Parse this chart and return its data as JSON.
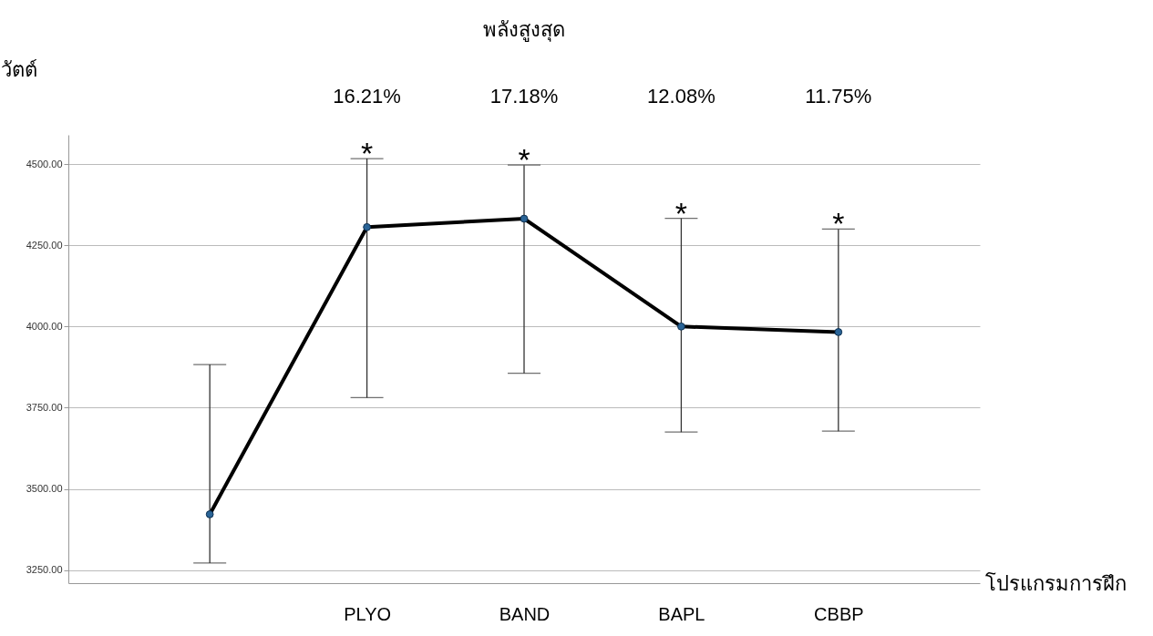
{
  "chart_data": {
    "type": "line",
    "title": "พลังสูงสุด",
    "xlabel": "โปรแกรมการฝึก",
    "ylabel": "วัตต์",
    "categories": [
      null,
      "PLYO",
      "BAND",
      "BAPL",
      "CBBP"
    ],
    "series": [
      {
        "color": "#000000",
        "values": [
          3422,
          4306,
          4332,
          4000,
          3983
        ],
        "errors": [
          [
            3272,
            3883
          ],
          [
            3781,
            4517
          ],
          [
            3856,
            4497
          ],
          [
            3675,
            4333
          ],
          [
            3678,
            4300
          ]
        ]
      }
    ],
    "ylim": [
      3210,
      4590
    ],
    "yticks": [
      {
        "value": 3250,
        "label": "3250.00"
      },
      {
        "value": 3500,
        "label": "3500.00"
      },
      {
        "value": 3750,
        "label": "3750.00"
      },
      {
        "value": 4000,
        "label": "4000.00"
      },
      {
        "value": 4250,
        "label": "4250.00"
      },
      {
        "value": 4500,
        "label": "4500.00"
      }
    ],
    "grid": "y",
    "marker": "circle",
    "line_style": "solid",
    "annotations": [
      "16.21%",
      "17.18%",
      "12.08%",
      "11.75%",
      "*",
      "*",
      "*",
      "*"
    ]
  }
}
